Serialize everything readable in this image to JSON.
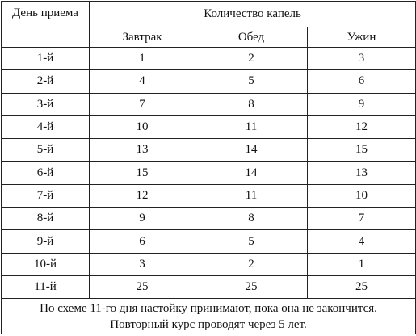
{
  "table": {
    "header": {
      "day": "День приема",
      "group": "Количество капель",
      "meals": [
        "Завтрак",
        "Обед",
        "Ужин"
      ]
    },
    "rows": [
      [
        "1-й",
        1,
        2,
        3
      ],
      [
        "2-й",
        4,
        5,
        6
      ],
      [
        "3-й",
        7,
        8,
        9
      ],
      [
        "4-й",
        10,
        11,
        12
      ],
      [
        "5-й",
        13,
        14,
        15
      ],
      [
        "6-й",
        15,
        14,
        13
      ],
      [
        "7-й",
        12,
        11,
        10
      ],
      [
        "8-й",
        9,
        8,
        7
      ],
      [
        "9-й",
        6,
        5,
        4
      ],
      [
        "10-й",
        3,
        2,
        1
      ],
      [
        "11-й",
        25,
        25,
        25
      ]
    ],
    "footer": [
      "По схеме 11-го дня настойку принимают, пока она не закончится.",
      "Повторный курс проводят через 5 лет."
    ]
  }
}
